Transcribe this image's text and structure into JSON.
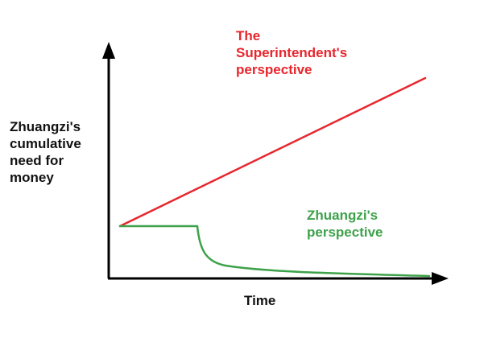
{
  "diagram": {
    "y_axis_label_lines": [
      "Zhuangzi's",
      "cumulative",
      "need for",
      "money"
    ],
    "x_axis_label": "Time",
    "series": [
      {
        "id": "superintendent",
        "label_lines": [
          "The",
          "Superintendent's",
          "perspective"
        ],
        "color": "#e8262d",
        "shape": "straight rising line"
      },
      {
        "id": "zhuangzi",
        "label_lines": [
          "Zhuangzi's",
          "perspective"
        ],
        "color": "#3ea24a",
        "shape": "flat, then sharp drop, then slow decay toward zero"
      }
    ],
    "axis_color": "#000000"
  }
}
